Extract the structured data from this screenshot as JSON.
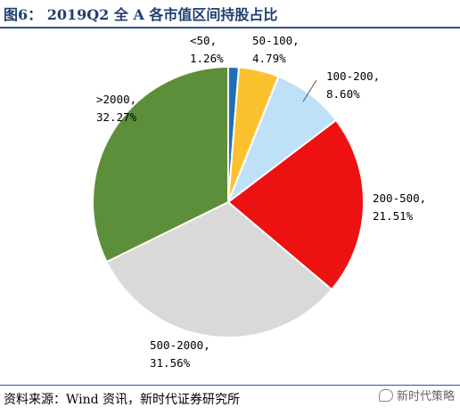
{
  "title": "图6：  2019Q2 全 A 各市值区间持股占比",
  "source": "资料来源：Wind 资讯，新时代证券研究所",
  "watermark": "新时代策略",
  "chart_data": {
    "type": "pie",
    "slices": [
      {
        "label": "<50",
        "value": 1.26,
        "value_text": "1.26%",
        "color": "#1f6fb5"
      },
      {
        "label": "50-100",
        "value": 4.79,
        "value_text": "4.79%",
        "color": "#fcc12f"
      },
      {
        "label": "100-200",
        "value": 8.6,
        "value_text": "8.60%",
        "color": "#bfe1f8"
      },
      {
        "label": "200-500",
        "value": 21.51,
        "value_text": "21.51%",
        "color": "#ee1111"
      },
      {
        "label": "500-2000",
        "value": 31.56,
        "value_text": "31.56%",
        "color": "#d9d9d9"
      },
      {
        "label": ">2000",
        "value": 32.27,
        "value_text": "32.27%",
        "color": "#5d8f3a"
      }
    ],
    "start_angle": "12 o'clock",
    "direction": "clockwise",
    "legend": "none",
    "data_labels": "outside"
  }
}
